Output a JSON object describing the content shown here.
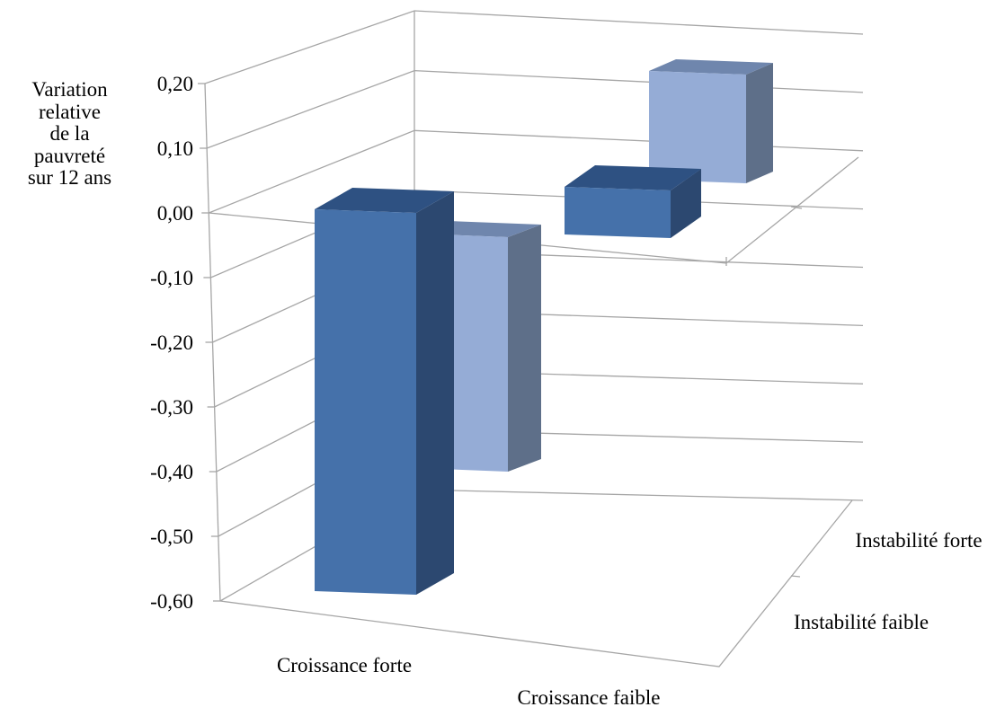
{
  "chart_data": {
    "type": "bar",
    "ylabel": [
      "Variation",
      "relative",
      "de la",
      "pauvreté",
      "sur 12 ans"
    ],
    "ylim": [
      -0.6,
      0.2
    ],
    "yticks": [
      0.2,
      0.1,
      0.0,
      -0.1,
      -0.2,
      -0.3,
      -0.4,
      -0.5,
      -0.6
    ],
    "ytick_labels": [
      "0,20",
      "0,10",
      "0,00",
      "-0,10",
      "-0,20",
      "-0,30",
      "-0,40",
      "-0,50",
      "-0,60"
    ],
    "categories": [
      "Croissance forte",
      "Croissance faible"
    ],
    "series_categories": [
      "Instabilité faible",
      "Instabilité forte"
    ],
    "series": [
      {
        "values": [
          -0.57,
          -0.03
        ]
      },
      {
        "values": [
          -0.39,
          0.16
        ]
      }
    ],
    "grid": true,
    "colors": {
      "series_front": "#4571aa",
      "series_front_top": "#2e5182",
      "series_front_side": "#2c4870",
      "series_back": "#95acd6",
      "series_back_top": "#6f86ad",
      "series_back_side": "#5e6f89",
      "grid": "#a6a6a6"
    }
  }
}
